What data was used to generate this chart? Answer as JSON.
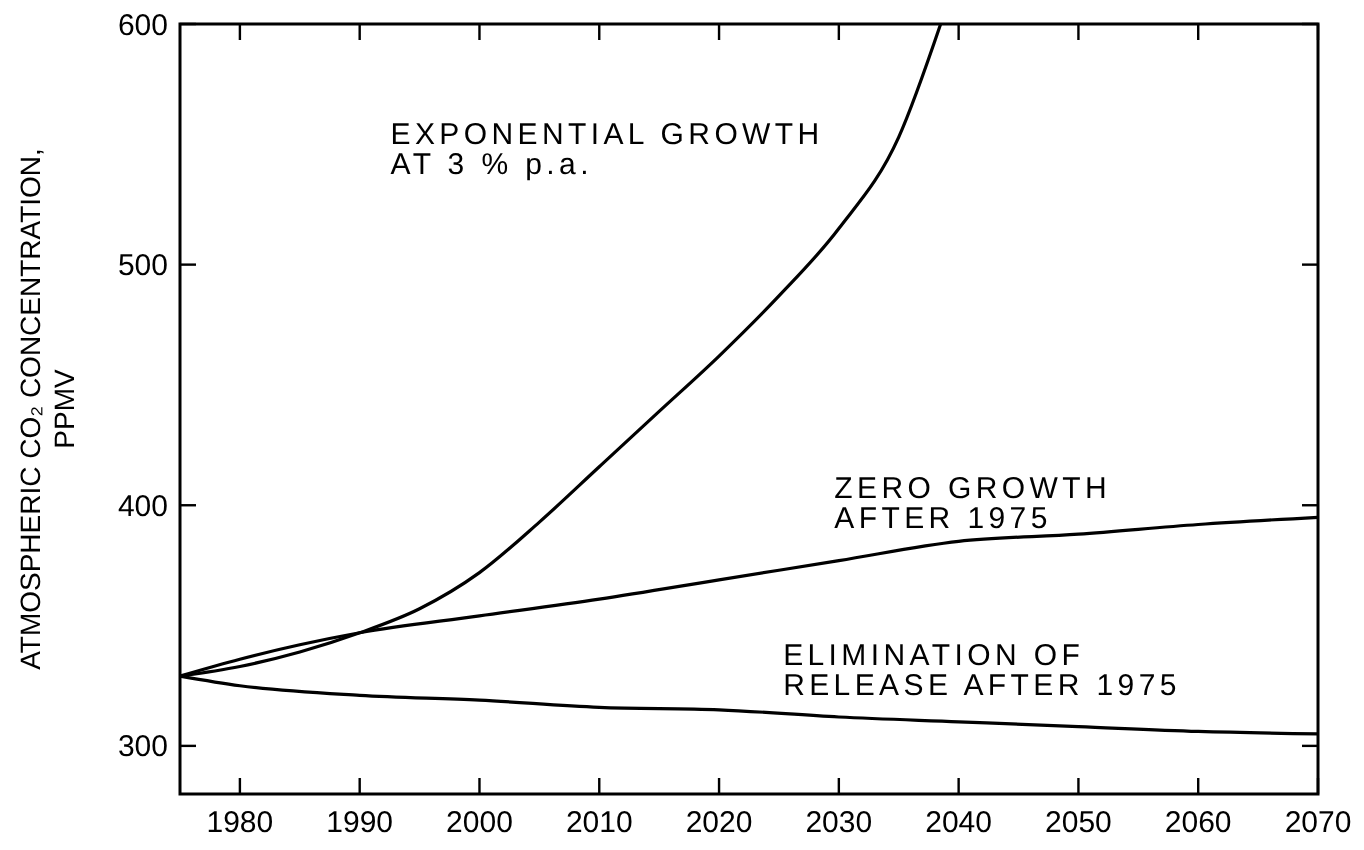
{
  "chart_data": {
    "type": "line",
    "ylabel": "ATMOSPHERIC CO₂ CONCENTRATION,\nPPMV",
    "xlim": [
      1975,
      2070
    ],
    "ylim": [
      280,
      600
    ],
    "xticks": [
      1980,
      1990,
      2000,
      2010,
      2020,
      2030,
      2040,
      2050,
      2060,
      2070
    ],
    "yticks": [
      300,
      400,
      500,
      600
    ],
    "grid": false,
    "legend": false,
    "marker": "none",
    "line_style": "solid",
    "series": [
      {
        "name": "EXPONENTIAL GROWTH\nAT 3 % p.a.",
        "color": "#000000",
        "x": [
          1975,
          1980,
          1985,
          1990,
          1995,
          2000,
          2005,
          2010,
          2015,
          2020,
          2025,
          2030,
          2035,
          2038.5
        ],
        "values": [
          329,
          333,
          339,
          347,
          357,
          372,
          393,
          416,
          439,
          462,
          487,
          515,
          553,
          600
        ]
      },
      {
        "name": "ZERO GROWTH\nAFTER 1975",
        "color": "#000000",
        "x": [
          1975,
          1980,
          1985,
          1990,
          2000,
          2010,
          2020,
          2030,
          2040,
          2050,
          2060,
          2070
        ],
        "values": [
          329,
          336,
          342,
          347,
          354,
          361,
          369,
          377,
          385,
          388,
          392,
          395
        ]
      },
      {
        "name": "ELIMINATION OF\nRELEASE AFTER 1975",
        "color": "#000000",
        "x": [
          1975,
          1980,
          1990,
          2000,
          2010,
          2020,
          2030,
          2040,
          2050,
          2060,
          2070
        ],
        "values": [
          329,
          325,
          321,
          319,
          316,
          315,
          312,
          310,
          308,
          306,
          305
        ]
      }
    ]
  }
}
